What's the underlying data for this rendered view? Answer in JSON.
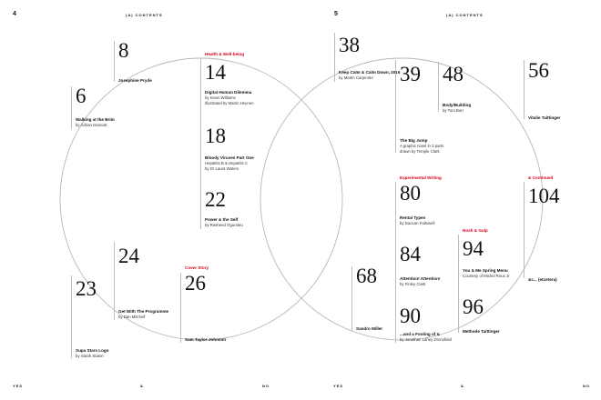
{
  "left_page": {
    "folio": "4",
    "running_head": "(A) CONTENTS",
    "footer": [
      "YES",
      "&",
      "NO"
    ]
  },
  "right_page": {
    "folio": "5",
    "running_head": "(A) CONTENTS",
    "footer": [
      "YES",
      "&",
      "NO"
    ]
  },
  "accent_color": "#d9001b",
  "entries": [
    {
      "num": "8",
      "lines": [
        "Josephine Pryde"
      ]
    },
    {
      "num": "6",
      "lines": [
        "Walking at the Brim",
        "by Adrian Dannatt"
      ]
    },
    {
      "section": "Health & Well-being",
      "num": "14",
      "lines": [
        "Digital Human Dilemma",
        "by Kevin Williams",
        "Illustrated by Martin Heynen"
      ]
    },
    {
      "num": "18",
      "lines": [
        "Bloody Viruses Part One",
        "Hepatitis B & Hepatitis C",
        "by Dr Laura Waters"
      ]
    },
    {
      "num": "22",
      "lines": [
        "Power & the Self",
        "by Rasheed Ogunlaru"
      ]
    },
    {
      "num": "24",
      "lines": [
        "Get With The Programme",
        "by Dan Mitchell"
      ]
    },
    {
      "section": "Cover Story",
      "num": "26",
      "lines": [
        "Sam Taylor-Johnson"
      ]
    },
    {
      "num": "23",
      "lines": [
        "Supa Stars Logo",
        "by Sarah Staton"
      ]
    },
    {
      "num": "38",
      "lines": [
        "Keep Calm & Calm Down, 2016",
        "by Martin Carpenter"
      ]
    },
    {
      "num": "39",
      "lines": [
        "The Big Jump",
        "A graphic novel in 3 parts",
        "drawn by Temple Clark"
      ]
    },
    {
      "num": "48",
      "lines": [
        "Body/Building",
        "by Tom Burr"
      ]
    },
    {
      "num": "56",
      "lines": [
        "Vitalie Taittinger"
      ]
    },
    {
      "section": "Experimental Writing",
      "num": "80",
      "lines": [
        "Rental Types",
        "by Duncan Fallowell"
      ]
    },
    {
      "num": "84",
      "lines": [
        "Attention! Attention!",
        "by Finley Clark"
      ]
    },
    {
      "num": "90",
      "lines": [
        "...and a Fooling of &",
        "by Jonathan Lahey Dronsfield"
      ]
    },
    {
      "section": "& Continued",
      "num": "104",
      "lines": [
        "&c... (etcetera)"
      ]
    },
    {
      "section": "Nosh & Gulp",
      "num": "94",
      "lines": [
        "You & Me Spring Menu",
        "Courtesy of Michel Roux Jr"
      ]
    },
    {
      "num": "96",
      "lines": [
        "Methode Taittinger"
      ]
    },
    {
      "num": "68",
      "lines": [
        "Sandro Miller"
      ]
    }
  ]
}
